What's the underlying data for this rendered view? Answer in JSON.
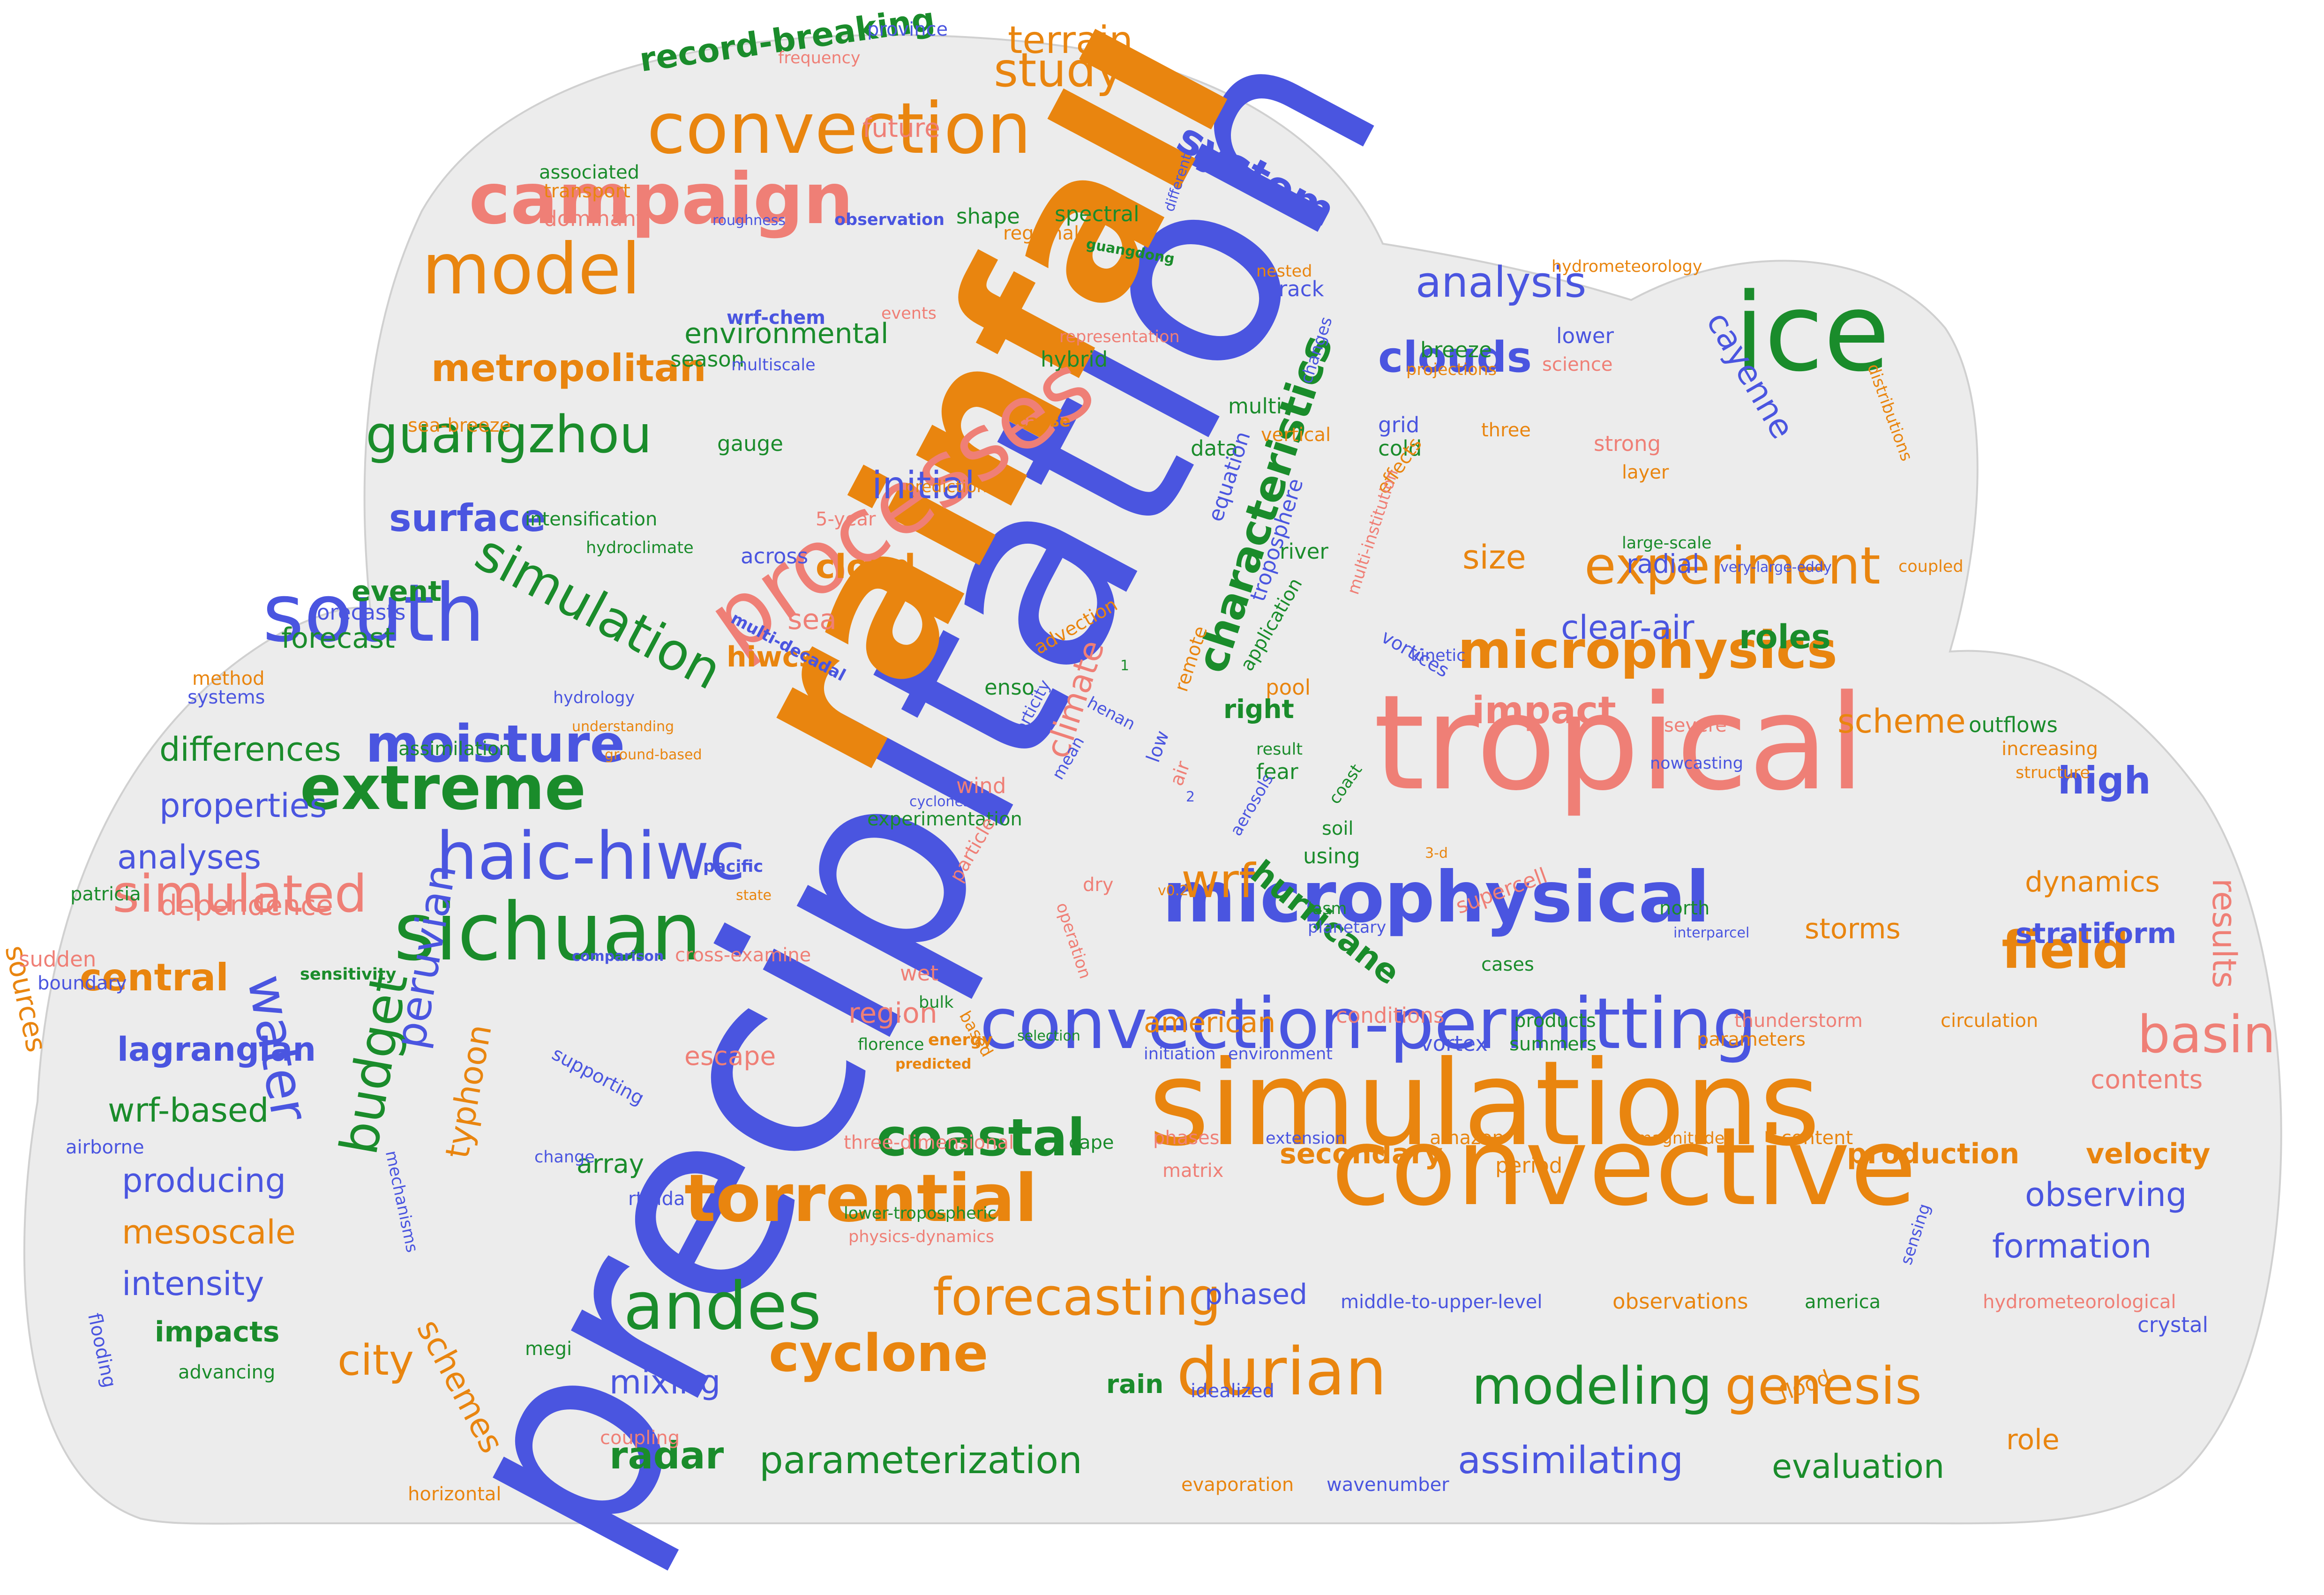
{
  "palette": {
    "blue": "#4a55e0",
    "orange": "#e9850f",
    "salmon": "#ef7f76",
    "green": "#1a8c2b",
    "cloud_fill": "#ececec",
    "cloud_stroke": "#d0d0d0"
  },
  "words": [
    {
      "t": "precipitation",
      "c": "blue"
    },
    {
      "t": "rainfall",
      "c": "orange"
    },
    {
      "t": "tropical",
      "c": "salmon"
    },
    {
      "t": "simulations",
      "c": "orange"
    },
    {
      "t": "convective",
      "c": "orange"
    },
    {
      "t": "processes",
      "c": "salmon"
    },
    {
      "t": "ice",
      "c": "green"
    },
    {
      "t": "microphysical",
      "c": "blue"
    },
    {
      "t": "convection-permitting",
      "c": "blue"
    },
    {
      "t": "sichuan",
      "c": "green"
    },
    {
      "t": "south",
      "c": "blue"
    },
    {
      "t": "campaign",
      "c": "salmon"
    },
    {
      "t": "convection",
      "c": "orange"
    },
    {
      "t": "model",
      "c": "orange"
    },
    {
      "t": "haic-hiwc",
      "c": "blue"
    },
    {
      "t": "torrential",
      "c": "orange"
    },
    {
      "t": "andes",
      "c": "green"
    },
    {
      "t": "durian",
      "c": "orange"
    },
    {
      "t": "extreme",
      "c": "green"
    },
    {
      "t": "simulation",
      "c": "green"
    },
    {
      "t": "microphysics",
      "c": "orange"
    },
    {
      "t": "experiment",
      "c": "orange"
    },
    {
      "t": "guangzhou",
      "c": "green"
    },
    {
      "t": "moisture",
      "c": "blue"
    },
    {
      "t": "cyclone",
      "c": "orange"
    },
    {
      "t": "modeling",
      "c": "green"
    },
    {
      "t": "genesis",
      "c": "orange"
    },
    {
      "t": "forecasting",
      "c": "orange"
    },
    {
      "t": "simulated",
      "c": "salmon"
    },
    {
      "t": "coastal",
      "c": "green"
    },
    {
      "t": "field",
      "c": "orange"
    },
    {
      "t": "basin",
      "c": "salmon"
    },
    {
      "t": "analysis",
      "c": "blue"
    },
    {
      "t": "clouds",
      "c": "blue"
    },
    {
      "t": "study",
      "c": "orange"
    },
    {
      "t": "characteristics",
      "c": "green"
    },
    {
      "t": "system",
      "c": "blue"
    },
    {
      "t": "metropolitan",
      "c": "orange"
    },
    {
      "t": "water",
      "c": "blue"
    },
    {
      "t": "budget",
      "c": "green"
    },
    {
      "t": "peruvian",
      "c": "blue"
    },
    {
      "t": "city",
      "c": "orange"
    },
    {
      "t": "radar",
      "c": "green"
    },
    {
      "t": "parameterization",
      "c": "green"
    },
    {
      "t": "assimilating",
      "c": "blue"
    },
    {
      "t": "evaluation",
      "c": "green"
    },
    {
      "t": "record-breaking",
      "c": "green"
    },
    {
      "t": "terrain",
      "c": "orange"
    },
    {
      "t": "surface",
      "c": "blue"
    },
    {
      "t": "initial",
      "c": "blue"
    },
    {
      "t": "impact",
      "c": "salmon"
    },
    {
      "t": "clear-air",
      "c": "blue"
    },
    {
      "t": "roles",
      "c": "green"
    },
    {
      "t": "scheme",
      "c": "orange"
    },
    {
      "t": "high",
      "c": "blue"
    },
    {
      "t": "wrf",
      "c": "orange"
    },
    {
      "t": "hurricane",
      "c": "green"
    },
    {
      "t": "central",
      "c": "orange"
    },
    {
      "t": "lagrangian",
      "c": "blue"
    },
    {
      "t": "wrf-based",
      "c": "green"
    },
    {
      "t": "producing",
      "c": "blue"
    },
    {
      "t": "mesoscale",
      "c": "orange"
    },
    {
      "t": "intensity",
      "c": "blue"
    },
    {
      "t": "impacts",
      "c": "green"
    },
    {
      "t": "mixing",
      "c": "blue"
    },
    {
      "t": "schemes",
      "c": "orange"
    },
    {
      "t": "typhoon",
      "c": "orange"
    },
    {
      "t": "differences",
      "c": "green"
    },
    {
      "t": "properties",
      "c": "blue"
    },
    {
      "t": "analyses",
      "c": "blue"
    },
    {
      "t": "dependence",
      "c": "salmon"
    },
    {
      "t": "forecast",
      "c": "green"
    },
    {
      "t": "event",
      "c": "green"
    },
    {
      "t": "cayenne",
      "c": "blue"
    },
    {
      "t": "environmental",
      "c": "green"
    },
    {
      "t": "future",
      "c": "salmon"
    },
    {
      "t": "cloud",
      "c": "orange"
    },
    {
      "t": "sea",
      "c": "salmon"
    },
    {
      "t": "hiwcs",
      "c": "orange"
    },
    {
      "t": "climate",
      "c": "salmon"
    },
    {
      "t": "size",
      "c": "orange"
    },
    {
      "t": "dynamics",
      "c": "orange"
    },
    {
      "t": "storms",
      "c": "orange"
    },
    {
      "t": "stratiform",
      "c": "blue"
    },
    {
      "t": "results",
      "c": "salmon"
    },
    {
      "t": "american",
      "c": "orange"
    },
    {
      "t": "region",
      "c": "salmon"
    },
    {
      "t": "secondary",
      "c": "orange"
    },
    {
      "t": "production",
      "c": "orange"
    },
    {
      "t": "velocity",
      "c": "orange"
    },
    {
      "t": "observing",
      "c": "blue"
    },
    {
      "t": "formation",
      "c": "blue"
    },
    {
      "t": "phased",
      "c": "blue"
    },
    {
      "t": "rain",
      "c": "green"
    },
    {
      "t": "array",
      "c": "green"
    },
    {
      "t": "sources",
      "c": "orange"
    },
    {
      "t": "contents",
      "c": "salmon"
    },
    {
      "t": "frequency",
      "c": "salmon"
    },
    {
      "t": "province",
      "c": "blue"
    },
    {
      "t": "associated",
      "c": "green"
    },
    {
      "t": "transport",
      "c": "orange"
    },
    {
      "t": "dominant",
      "c": "salmon"
    },
    {
      "t": "roughness",
      "c": "blue"
    },
    {
      "t": "observation",
      "c": "blue"
    },
    {
      "t": "shape",
      "c": "green"
    },
    {
      "t": "spectral",
      "c": "green"
    },
    {
      "t": "regional",
      "c": "orange"
    },
    {
      "t": "guangdong",
      "c": "green"
    },
    {
      "t": "different",
      "c": "blue"
    },
    {
      "t": "nested",
      "c": "orange"
    },
    {
      "t": "track",
      "c": "blue"
    },
    {
      "t": "hydrometeorology",
      "c": "orange"
    },
    {
      "t": "wrf-chem",
      "c": "blue"
    },
    {
      "t": "events",
      "c": "salmon"
    },
    {
      "t": "representation",
      "c": "salmon"
    },
    {
      "t": "season",
      "c": "green"
    },
    {
      "t": "multiscale",
      "c": "blue"
    },
    {
      "t": "hybrid",
      "c": "green"
    },
    {
      "t": "changes",
      "c": "blue"
    },
    {
      "t": "lower",
      "c": "blue"
    },
    {
      "t": "breeze",
      "c": "green"
    },
    {
      "t": "projections",
      "c": "orange"
    },
    {
      "t": "science",
      "c": "salmon"
    },
    {
      "t": "sea-breeze",
      "c": "orange"
    },
    {
      "t": "gauge",
      "c": "green"
    },
    {
      "t": "cause",
      "c": "orange"
    },
    {
      "t": "multi",
      "c": "green"
    },
    {
      "t": "vertical",
      "c": "orange"
    },
    {
      "t": "grid",
      "c": "blue"
    },
    {
      "t": "three",
      "c": "orange"
    },
    {
      "t": "cold",
      "c": "green"
    },
    {
      "t": "strong",
      "c": "salmon"
    },
    {
      "t": "layer",
      "c": "orange"
    },
    {
      "t": "distributions",
      "c": "orange"
    },
    {
      "t": "data",
      "c": "green"
    },
    {
      "t": "equation",
      "c": "blue"
    },
    {
      "t": "effects",
      "c": "orange"
    },
    {
      "t": "prediction",
      "c": "orange"
    },
    {
      "t": "5-year",
      "c": "salmon"
    },
    {
      "t": "intensification",
      "c": "green"
    },
    {
      "t": "hydroclimate",
      "c": "green"
    },
    {
      "t": "troposphere",
      "c": "blue"
    },
    {
      "t": "multi-institution",
      "c": "salmon"
    },
    {
      "t": "river",
      "c": "green"
    },
    {
      "t": "large-scale",
      "c": "green"
    },
    {
      "t": "very-large-eddy",
      "c": "blue"
    },
    {
      "t": "coupled",
      "c": "orange"
    },
    {
      "t": "radial",
      "c": "blue"
    },
    {
      "t": "across",
      "c": "blue"
    },
    {
      "t": "application",
      "c": "green"
    },
    {
      "t": "vortices",
      "c": "blue"
    },
    {
      "t": "kinetic",
      "c": "blue"
    },
    {
      "t": "forecasts",
      "c": "blue"
    },
    {
      "t": "multi-decadal",
      "c": "blue"
    },
    {
      "t": "advection",
      "c": "orange"
    },
    {
      "t": "remote",
      "c": "orange"
    },
    {
      "t": "method",
      "c": "orange"
    },
    {
      "t": "systems",
      "c": "blue"
    },
    {
      "t": "hydrology",
      "c": "blue"
    },
    {
      "t": "understanding",
      "c": "orange"
    },
    {
      "t": "enso",
      "c": "green"
    },
    {
      "t": "henan",
      "c": "blue"
    },
    {
      "t": "pool",
      "c": "orange"
    },
    {
      "t": "right",
      "c": "green"
    },
    {
      "t": "assimilation",
      "c": "green"
    },
    {
      "t": "ground-based",
      "c": "orange"
    },
    {
      "t": "wind",
      "c": "salmon"
    },
    {
      "t": "cyclones",
      "c": "blue"
    },
    {
      "t": "vorticity",
      "c": "blue"
    },
    {
      "t": "mean",
      "c": "blue"
    },
    {
      "t": "low",
      "c": "blue"
    },
    {
      "t": "air",
      "c": "salmon"
    },
    {
      "t": "result",
      "c": "green"
    },
    {
      "t": "fear",
      "c": "green"
    },
    {
      "t": "nowcasting",
      "c": "blue"
    },
    {
      "t": "outflows",
      "c": "green"
    },
    {
      "t": "increasing",
      "c": "orange"
    },
    {
      "t": "structure",
      "c": "orange"
    },
    {
      "t": "severe",
      "c": "salmon"
    },
    {
      "t": "experimentation",
      "c": "green"
    },
    {
      "t": "particle",
      "c": "salmon"
    },
    {
      "t": "aerosols",
      "c": "blue"
    },
    {
      "t": "coast",
      "c": "green"
    },
    {
      "t": "soil",
      "c": "green"
    },
    {
      "t": "using",
      "c": "green"
    },
    {
      "t": "3-d",
      "c": "orange"
    },
    {
      "t": "pacific",
      "c": "blue"
    },
    {
      "t": "state",
      "c": "orange"
    },
    {
      "t": "patricia",
      "c": "green"
    },
    {
      "t": "operation",
      "c": "salmon"
    },
    {
      "t": "dry",
      "c": "salmon"
    },
    {
      "t": "v0.2",
      "c": "orange"
    },
    {
      "t": "lasm",
      "c": "green"
    },
    {
      "t": "planetary",
      "c": "blue"
    },
    {
      "t": "supercell",
      "c": "salmon"
    },
    {
      "t": "cases",
      "c": "green"
    },
    {
      "t": "north",
      "c": "green"
    },
    {
      "t": "interparcel",
      "c": "blue"
    },
    {
      "t": "sudden",
      "c": "salmon"
    },
    {
      "t": "boundary",
      "c": "blue"
    },
    {
      "t": "sensitivity",
      "c": "green"
    },
    {
      "t": "comparison",
      "c": "blue"
    },
    {
      "t": "cross-examine",
      "c": "salmon"
    },
    {
      "t": "wet",
      "c": "salmon"
    },
    {
      "t": "bulk",
      "c": "green"
    },
    {
      "t": "based",
      "c": "orange"
    },
    {
      "t": "conditions",
      "c": "salmon"
    },
    {
      "t": "products",
      "c": "green"
    },
    {
      "t": "thunderstorm",
      "c": "salmon"
    },
    {
      "t": "circulation",
      "c": "orange"
    },
    {
      "t": "supporting",
      "c": "blue"
    },
    {
      "t": "escape",
      "c": "salmon"
    },
    {
      "t": "florence",
      "c": "green"
    },
    {
      "t": "energy",
      "c": "orange"
    },
    {
      "t": "selection",
      "c": "green"
    },
    {
      "t": "predicted",
      "c": "orange"
    },
    {
      "t": "initiation",
      "c": "blue"
    },
    {
      "t": "environment",
      "c": "blue"
    },
    {
      "t": "vortex",
      "c": "blue"
    },
    {
      "t": "summers",
      "c": "green"
    },
    {
      "t": "parameters",
      "c": "orange"
    },
    {
      "t": "mechanisms",
      "c": "blue"
    },
    {
      "t": "three-dimensional",
      "c": "salmon"
    },
    {
      "t": "cape",
      "c": "green"
    },
    {
      "t": "phases",
      "c": "salmon"
    },
    {
      "t": "extension",
      "c": "blue"
    },
    {
      "t": "amazon",
      "c": "orange"
    },
    {
      "t": "magnitude",
      "c": "orange"
    },
    {
      "t": "content",
      "c": "orange"
    },
    {
      "t": "airborne",
      "c": "blue"
    },
    {
      "t": "change",
      "c": "blue"
    },
    {
      "t": "matrix",
      "c": "salmon"
    },
    {
      "t": "period",
      "c": "orange"
    },
    {
      "t": "rtfdda",
      "c": "blue"
    },
    {
      "t": "lower-tropospheric",
      "c": "green"
    },
    {
      "t": "physics-dynamics",
      "c": "salmon"
    },
    {
      "t": "flooding",
      "c": "blue"
    },
    {
      "t": "sensing",
      "c": "blue"
    },
    {
      "t": "middle-to-upper-level",
      "c": "blue"
    },
    {
      "t": "observations",
      "c": "orange"
    },
    {
      "t": "america",
      "c": "green"
    },
    {
      "t": "hydrometeorological",
      "c": "salmon"
    },
    {
      "t": "crystal",
      "c": "blue"
    },
    {
      "t": "megi",
      "c": "green"
    },
    {
      "t": "flood",
      "c": "orange"
    },
    {
      "t": "idealized",
      "c": "blue"
    },
    {
      "t": "advancing",
      "c": "green"
    },
    {
      "t": "coupling",
      "c": "salmon"
    },
    {
      "t": "horizontal",
      "c": "orange"
    },
    {
      "t": "evaporation",
      "c": "orange"
    },
    {
      "t": "wavenumber",
      "c": "blue"
    },
    {
      "t": "role",
      "c": "orange"
    },
    {
      "t": "1",
      "c": "green"
    },
    {
      "t": "2",
      "c": "blue"
    }
  ]
}
